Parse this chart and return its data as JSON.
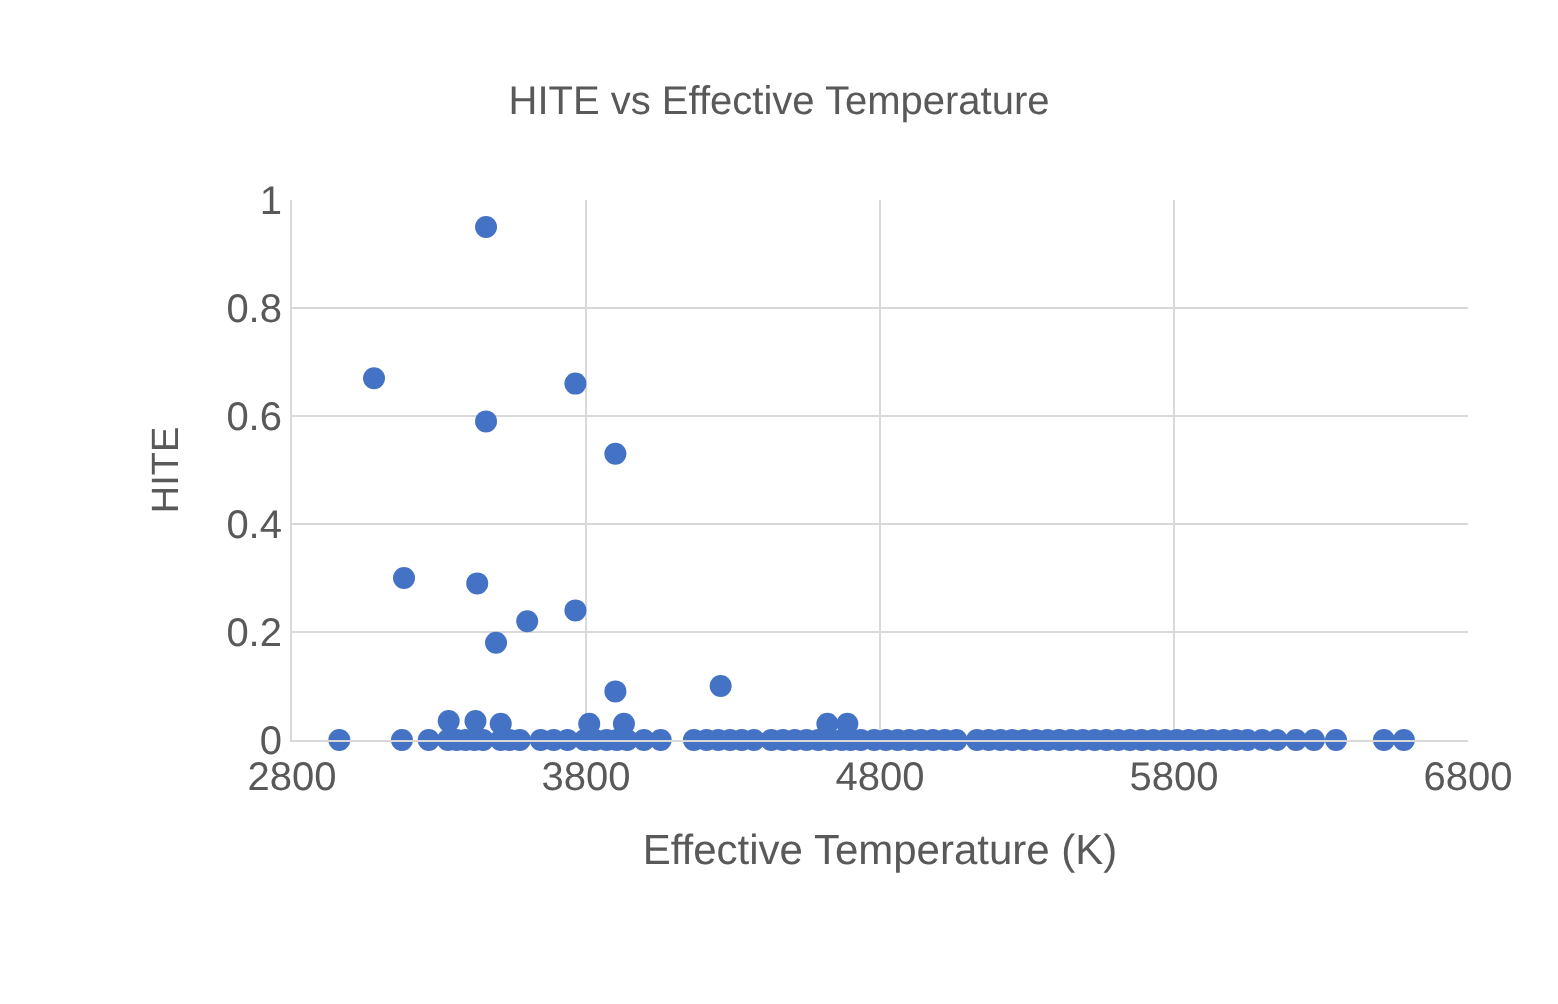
{
  "chart_data": {
    "type": "scatter",
    "title": "HITE vs Effective Temperature",
    "xlabel": "Effective Temperature (K)",
    "ylabel": "HITE",
    "marker": "circle",
    "grid": true,
    "series": [
      {
        "color": "#4472c4",
        "x": [
          3460,
          3079,
          3764,
          3460,
          3900,
          3181,
          3430,
          3764,
          3600,
          3494,
          3900,
          4258,
          3333,
          3424,
          3510,
          3811,
          3929,
          4621,
          4689,
          2961,
          3174,
          3265,
          3330,
          3360,
          3390,
          3420,
          3450,
          3510,
          3540,
          3575,
          3646,
          3690,
          3737,
          3795,
          3830,
          3870,
          3905,
          3940,
          3997,
          4054,
          4167,
          4210,
          4250,
          4290,
          4330,
          4371,
          4430,
          4470,
          4510,
          4550,
          4590,
          4630,
          4670,
          4700,
          4735,
          4780,
          4820,
          4860,
          4900,
          4940,
          4980,
          5020,
          5060,
          5130,
          5170,
          5210,
          5250,
          5290,
          5330,
          5370,
          5410,
          5450,
          5490,
          5530,
          5570,
          5610,
          5650,
          5690,
          5730,
          5770,
          5810,
          5850,
          5890,
          5930,
          5970,
          6010,
          6050,
          6100,
          6150,
          6215,
          6276,
          6351,
          6514,
          6582
        ],
        "values": [
          0.95,
          0.67,
          0.66,
          0.59,
          0.53,
          0.3,
          0.29,
          0.24,
          0.22,
          0.18,
          0.09,
          0.1,
          0.035,
          0.035,
          0.03,
          0.03,
          0.03,
          0.03,
          0.03,
          0,
          0,
          0,
          0,
          0,
          0,
          0,
          0,
          0,
          0,
          0,
          0,
          0,
          0,
          0,
          0,
          0,
          0,
          0,
          0,
          0,
          0,
          0,
          0,
          0,
          0,
          0,
          0,
          0,
          0,
          0,
          0,
          0,
          0,
          0,
          0,
          0,
          0,
          0,
          0,
          0,
          0,
          0,
          0,
          0,
          0,
          0,
          0,
          0,
          0,
          0,
          0,
          0,
          0,
          0,
          0,
          0,
          0,
          0,
          0,
          0,
          0,
          0,
          0,
          0,
          0,
          0,
          0,
          0,
          0,
          0,
          0,
          0,
          0,
          0
        ]
      }
    ],
    "xlim": [
      2800,
      6800
    ],
    "xticks": [
      2800,
      3800,
      4800,
      5800,
      6800
    ],
    "ylim": [
      0,
      1
    ],
    "yticks": [
      0,
      0.2,
      0.4,
      0.6,
      0.8,
      1
    ]
  }
}
